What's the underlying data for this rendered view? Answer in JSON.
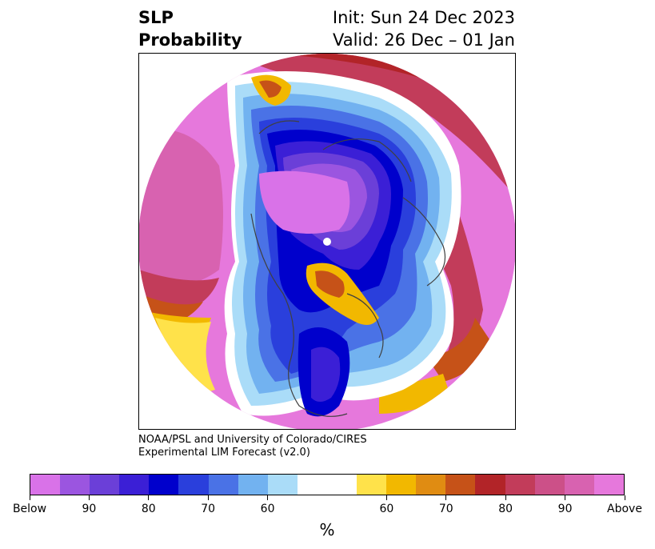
{
  "title": {
    "left_line1": "SLP",
    "left_line2": "Probability",
    "right_line1": "Init: Sun 24 Dec 2023",
    "right_line2": "Valid: 26 Dec – 01 Jan"
  },
  "credit": {
    "line1": "NOAA/PSL and University of Colorado/CIRES",
    "line2": "Experimental LIM Forecast (v2.0)"
  },
  "colorbar": {
    "colors": [
      "#d972e8",
      "#9b55e0",
      "#6b3fd8",
      "#3b1fd6",
      "#0000cc",
      "#2a3fdc",
      "#4a72e6",
      "#72b2f0",
      "#aadcf8",
      "#ffffff",
      "#ffe24a",
      "#f2b800",
      "#e08c12",
      "#c65218",
      "#b22428",
      "#c23c5a",
      "#cc5088",
      "#d862b0",
      "#e678dc"
    ],
    "labels": [
      "Below",
      "90",
      "80",
      "70",
      "60",
      "60",
      "70",
      "80",
      "90",
      "Above"
    ],
    "units": "%"
  }
}
